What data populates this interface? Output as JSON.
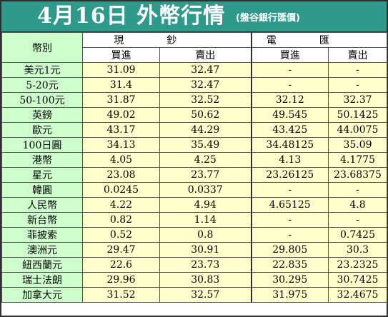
{
  "header": {
    "title": "4月16日 外幣行情",
    "source": "(盤谷銀行匯價)"
  },
  "table": {
    "corner_label": "幣別",
    "cash_label": "現鈔",
    "remit_label": "電匯",
    "buy_label": "買進",
    "sell_label": "賣出",
    "rows": [
      {
        "currency": "美元1元",
        "cash_buy": "31.09",
        "cash_sell": "32.47",
        "remit_buy": "-",
        "remit_sell": "-"
      },
      {
        "currency": "5-20元",
        "cash_buy": "31.4",
        "cash_sell": "32.47",
        "remit_buy": "-",
        "remit_sell": "-"
      },
      {
        "currency": "50-100元",
        "cash_buy": "31.87",
        "cash_sell": "32.52",
        "remit_buy": "32.12",
        "remit_sell": "32.37"
      },
      {
        "currency": "英鎊",
        "cash_buy": "49.02",
        "cash_sell": "50.62",
        "remit_buy": "49.545",
        "remit_sell": "50.1425"
      },
      {
        "currency": "歐元",
        "cash_buy": "43.17",
        "cash_sell": "44.29",
        "remit_buy": "43.425",
        "remit_sell": "44.0075"
      },
      {
        "currency": "100日圓",
        "cash_buy": "34.13",
        "cash_sell": "35.49",
        "remit_buy": "34.48125",
        "remit_sell": "35.09"
      },
      {
        "currency": "港幣",
        "cash_buy": "4.05",
        "cash_sell": "4.25",
        "remit_buy": "4.13",
        "remit_sell": "4.1775"
      },
      {
        "currency": "星元",
        "cash_buy": "23.08",
        "cash_sell": "23.77",
        "remit_buy": "23.26125",
        "remit_sell": "23.68375"
      },
      {
        "currency": "韓圓",
        "cash_buy": "0.0245",
        "cash_sell": "0.0337",
        "remit_buy": "-",
        "remit_sell": "-"
      },
      {
        "currency": "人民幣",
        "cash_buy": "4.22",
        "cash_sell": "4.94",
        "remit_buy": "4.65125",
        "remit_sell": "4.8"
      },
      {
        "currency": "新台幣",
        "cash_buy": "0.82",
        "cash_sell": "1.14",
        "remit_buy": "-",
        "remit_sell": "-"
      },
      {
        "currency": "菲披索",
        "cash_buy": "0.52",
        "cash_sell": "0.8",
        "remit_buy": "-",
        "remit_sell": "0.7425"
      },
      {
        "currency": "澳洲元",
        "cash_buy": "29.47",
        "cash_sell": "30.91",
        "remit_buy": "29.805",
        "remit_sell": "30.3"
      },
      {
        "currency": "紐西蘭元",
        "cash_buy": "22.6",
        "cash_sell": "23.73",
        "remit_buy": "22.835",
        "remit_sell": "23.2325"
      },
      {
        "currency": "瑞士法朗",
        "cash_buy": "29.96",
        "cash_sell": "30.83",
        "remit_buy": "30.295",
        "remit_sell": "30.7425"
      },
      {
        "currency": "加拿大元",
        "cash_buy": "31.52",
        "cash_sell": "32.57",
        "remit_buy": "31.975",
        "remit_sell": "32.4675"
      }
    ]
  }
}
